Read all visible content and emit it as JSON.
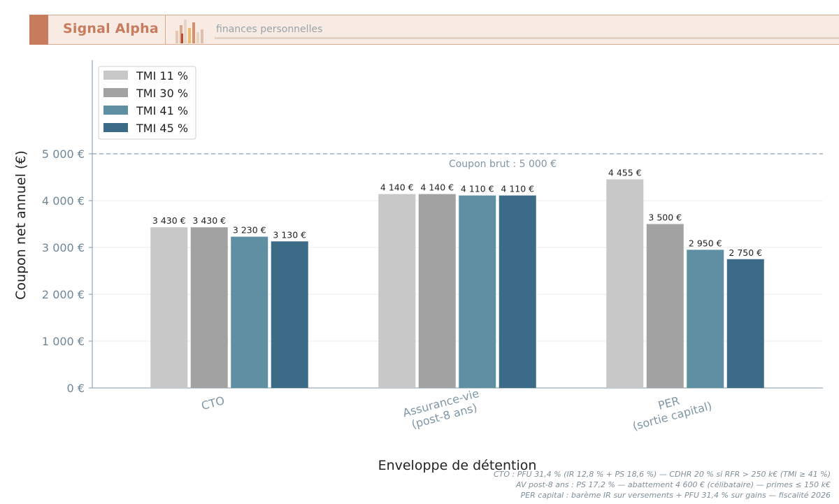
{
  "header": {
    "brand": "Signal Alpha",
    "tagline": "finances personnelles"
  },
  "chart_data": {
    "type": "bar",
    "categories": [
      "CTO",
      "Assurance-vie\n(post-8 ans)",
      "PER\n(sortie capital)"
    ],
    "series": [
      {
        "name": "TMI 11 %",
        "color": "#c8c8c8",
        "values": [
          3430,
          4140,
          4455
        ],
        "labels": [
          "3 430 €",
          "4 140 €",
          "4 455 €"
        ]
      },
      {
        "name": "TMI 30 %",
        "color": "#a2a2a2",
        "values": [
          3430,
          4140,
          3500
        ],
        "labels": [
          "3 430 €",
          "4 140 €",
          "3 500 €"
        ]
      },
      {
        "name": "TMI 41 %",
        "color": "#5e8fa2",
        "values": [
          3230,
          4110,
          2950
        ],
        "labels": [
          "3 230 €",
          "4 110 €",
          "2 950 €"
        ]
      },
      {
        "name": "TMI 45 %",
        "color": "#3c6b88",
        "values": [
          3130,
          4110,
          2750
        ],
        "labels": [
          "3 130 €",
          "4 110 €",
          "2 750 €"
        ]
      }
    ],
    "xlabel": "Enveloppe de détention",
    "ylabel": "Coupon net annuel (€)",
    "ylim": [
      0,
      7000
    ],
    "yticks": [
      0,
      1000,
      2000,
      3000,
      4000,
      5000
    ],
    "ytick_labels": [
      "0 €",
      "1 000 €",
      "2 000 €",
      "3 000 €",
      "4 000 €",
      "5 000 €"
    ],
    "reference_line": {
      "value": 5000,
      "label": "Coupon brut : 5 000 €"
    },
    "grid": true,
    "legend": "top-left"
  },
  "footnotes": [
    "CTO : PFU 31,4 % (IR 12,8 % + PS 18,6 %) — CDHR 20 % si RFR > 250 k€ (TMI ≥ 41 %)",
    "AV post-8 ans : PS 17,2 % — abattement 4 600 € (célibataire) — primes ≤ 150 k€",
    "PER capital : barème IR sur versements + PFU 31,4 % sur gains — fiscalité 2026"
  ]
}
